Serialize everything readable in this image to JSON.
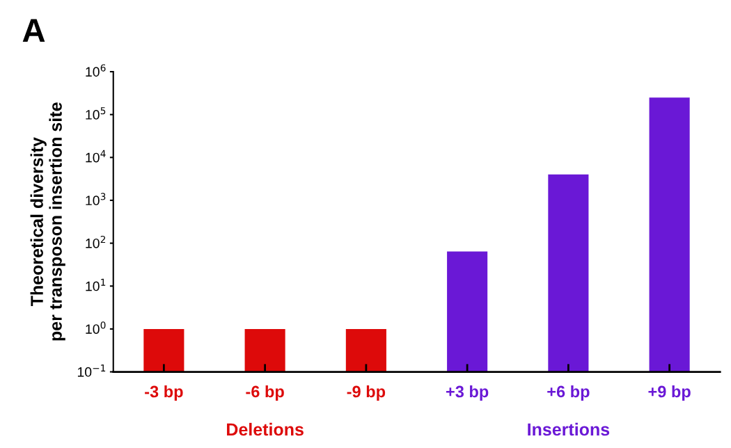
{
  "chart_data": {
    "type": "bar",
    "ylabel": "Theoretical diversity\nper transposon insertion site",
    "categories": [
      "-3 bp",
      "-6 bp",
      "-9 bp",
      "+3 bp",
      "+6 bp",
      "+9 bp"
    ],
    "values": [
      1,
      1,
      1,
      64,
      4000,
      250000
    ],
    "colors": [
      "#dd0a0a",
      "#dd0a0a",
      "#dd0a0a",
      "#6a18d6",
      "#6a18d6",
      "#6a18d6"
    ],
    "log": true,
    "ylim": [
      0.1,
      1000000
    ],
    "yticks": [
      {
        "value": 0.1,
        "label": "10$^{−1}$"
      },
      {
        "value": 1,
        "label": "10$^{0}$"
      },
      {
        "value": 10,
        "label": "10$^{1}$"
      },
      {
        "value": 100,
        "label": "10$^{2}$"
      },
      {
        "value": 1000,
        "label": "10$^{3}$"
      },
      {
        "value": 10000,
        "label": "10$^{4}$"
      },
      {
        "value": 100000,
        "label": "10$^{5}$"
      },
      {
        "value": 1000000,
        "label": "10$^{6}$"
      }
    ],
    "grid": false,
    "annotations": [
      "A",
      "Deletions",
      "Insertions"
    ]
  }
}
